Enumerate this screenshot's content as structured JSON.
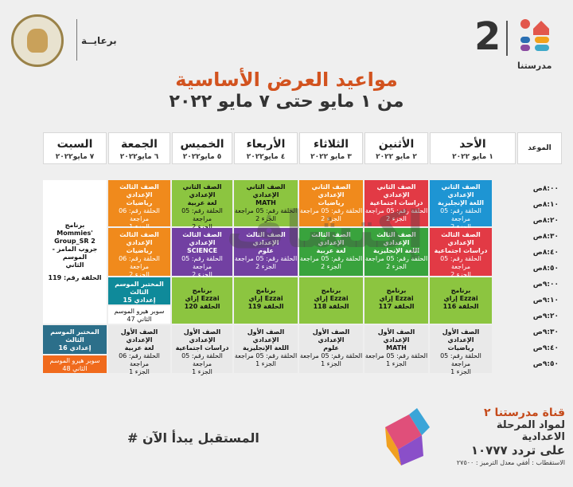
{
  "header": {
    "channel_number": "2",
    "channel_brand": "مدرستنا",
    "sponsor": "برعايــة",
    "title": "مواعيد العرض الأساسية",
    "subtitle": "من ١ مايو حتى ٧ مايو ٢٠٢٢"
  },
  "columns": [
    {
      "day": "",
      "date": "الموعد"
    },
    {
      "day": "الأحد",
      "date": "١ مايو ٢٠٢٢"
    },
    {
      "day": "الأثنين",
      "date": "٢ مايو ٢٠٢٢"
    },
    {
      "day": "الثلاثاء",
      "date": "٣ مايو ٢٠٢٢"
    },
    {
      "day": "الأربعاء",
      "date": "٤ مايو٢٠٢٢"
    },
    {
      "day": "الخميس",
      "date": "٥ مايو٢٠٢٢"
    },
    {
      "day": "الجمعة",
      "date": "٦ مايو٢٠٢٢"
    },
    {
      "day": "السبت",
      "date": "٧ مايو٢٠٢٢"
    }
  ],
  "times": [
    "٨:٠٠ص",
    "٨:١٠ص",
    "٨:٢٠ص",
    "٨:٣٠ص",
    "٨:٤٠ص",
    "٨:٥٠ص",
    "٩:٠٠ص",
    "٩:١٠ص",
    "٩:٢٠ص",
    "٩:٣٠ص",
    "٩:٤٠ص",
    "٩:٥٠ص"
  ],
  "cells": {
    "sun1": {
      "a": "الصف الثاني الإعدادي",
      "b": "اللغة الإنجليزية",
      "c": "الحلقة رقم: 05 مراجعة",
      "d": "الجزء 2"
    },
    "mon1": {
      "a": "الصف الثاني الإعدادي",
      "b": "دراسات اجتماعية",
      "c": "الحلقة رقم: 05 مراجعة",
      "d": "الجزء 2"
    },
    "tue1": {
      "a": "الصف الثاني الإعدادي",
      "b": "رياضيات",
      "c": "الحلقة رقم: 05 مراجعة",
      "d": "الجزء 2"
    },
    "wed1": {
      "a": "الصف الثاني الإعدادي",
      "b": "MATH",
      "c": "الحلقة رقم: 05 مراجعة",
      "d": "الجزء 2"
    },
    "thu1": {
      "a": "الصف الثاني الإعدادي",
      "b": "لغة عربية",
      "c": "الحلقة رقم: 05 مراجعة",
      "d": "الجزء 2"
    },
    "fri1": {
      "a": "الصف الثالث الإعدادي",
      "b": "رياضيات",
      "c": "الحلقة رقم: 06 مراجعة",
      "d": "الجزء 1"
    },
    "sun2": {
      "a": "الصف الثالث الإعدادي",
      "b": "دراسات اجتماعية",
      "c": "الحلقة رقم: 05 مراجعة",
      "d": "الجزء 2"
    },
    "mon2": {
      "a": "الصف الثالث الإعدادي",
      "b": "اللغة الإنجليزية",
      "c": "الحلقة رقم: 05 مراجعة",
      "d": "الجزء 2"
    },
    "tue2": {
      "a": "الصف الثالث الإعدادي",
      "b": "لغة عربية",
      "c": "الحلقة رقم: 05 مراجعة",
      "d": "الجزء 2"
    },
    "wed2": {
      "a": "الصف الثالث الإعدادي",
      "b": "علوم",
      "c": "الحلقة رقم: 05 مراجعة",
      "d": "الجزء 2"
    },
    "thu2": {
      "a": "الصف الثالث الإعدادي",
      "b": "SCIENCE",
      "c": "الحلقة رقم: 05 مراجعة",
      "d": "الجزء 2"
    },
    "fri2": {
      "a": "الصف الثالث الإعدادي",
      "b": "رياضيات",
      "c": "الحلقة رقم: 06 مراجعة",
      "d": "الجزء 2"
    },
    "sun3": {
      "a": "برنامج",
      "b": "إزاي Ezzai",
      "c": "الحلقة 116"
    },
    "mon3": {
      "a": "برنامج",
      "b": "إزاي Ezzai",
      "c": "الحلقة 117"
    },
    "tue3": {
      "a": "برنامج",
      "b": "إزاي Ezzai",
      "c": "الحلقة 118"
    },
    "wed3": {
      "a": "برنامج",
      "b": "إزاي Ezzai",
      "c": "الحلقة 119"
    },
    "thu3": {
      "a": "برنامج",
      "b": "إزاي Ezzai",
      "c": "الحلقة 120"
    },
    "fri3a": {
      "a": "المختبر الموسم الثالث",
      "b": "إعدادي 15"
    },
    "fri3b": {
      "a": "سوبر هيرو الموسم",
      "b": "الثاني 47"
    },
    "sun4": {
      "a": "الصف الأول الإعدادي",
      "b": "رياضيات",
      "c": "الحلقة رقم: 05 مراجعة",
      "d": "الجزء 1"
    },
    "mon4": {
      "a": "الصف الأول الإعدادي",
      "b": "MATH",
      "c": "الحلقة رقم: 05 مراجعة",
      "d": "الجزء 1"
    },
    "tue4": {
      "a": "الصف الأول الإعدادي",
      "b": "علوم",
      "c": "الحلقة رقم: 05 مراجعة",
      "d": "الجزء 1"
    },
    "wed4": {
      "a": "الصف الأول الإعدادي",
      "b": "اللغة الإنجليزية",
      "c": "الحلقة رقم: 05 مراجعة",
      "d": "الجزء 1"
    },
    "thu4": {
      "a": "الصف الأول الإعدادي",
      "b": "دراسات اجتماعية",
      "c": "الحلقة رقم: 05 مراجعة",
      "d": "الجزء 1"
    },
    "fri4": {
      "a": "الصف الأول الإعدادي",
      "b": "لغة عربية",
      "c": "الحلقة رقم: 06 مراجعة",
      "d": "الجزء 1"
    },
    "sat1": {
      "a": "برنامج",
      "b": "Mommies' Group_SR 2",
      "c": "جروب المامز - الموسم",
      "d": "الثاني",
      "e": "الحلقة رقم: 119"
    },
    "sat4a": {
      "a": "المختبر الموسم الثالث",
      "b": "إعدادي 16"
    },
    "sat4b": {
      "a": "سوبر هيرو الموسم",
      "b": "الثاني 48"
    }
  },
  "watermark": "إكتشاف",
  "footer": {
    "channel": "قناة مدرستنا ٢",
    "tagline": "لمواد المرحلة الاعدادية",
    "frequency": "على تردد ١٠٧٧٧",
    "reception": "الاستقطاب : أفقي معدل الترميز : ٢٧٥٠٠",
    "hashtag": "# المستقبل يبدأ الآن"
  }
}
